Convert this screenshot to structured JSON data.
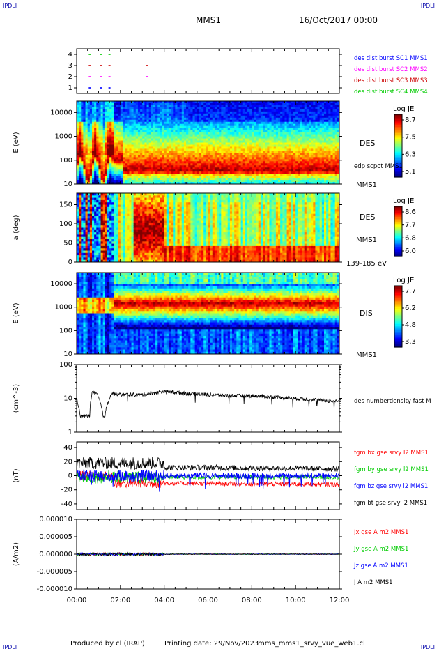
{
  "header": {
    "corner_left": "IPDLI",
    "corner_right": "IPDLI",
    "spacecraft": "MMS1",
    "date": "16/Oct/2017 00:00"
  },
  "footer": {
    "produced": "Produced by cl (IRAP)",
    "printing": "Printing date: 29/Nov/2023",
    "file": "mms_mms1_srvy_vue_web1.cl",
    "corner_left": "IPDLI",
    "corner_right": "IPDLI"
  },
  "x_axis": {
    "ticks": [
      "00:00",
      "02:00",
      "04:00",
      "06:00",
      "08:00",
      "10:00",
      "12:00"
    ]
  },
  "colors": {
    "red": "#ff0000",
    "green": "#00cc00",
    "blue": "#0000ff",
    "magenta": "#ff00ff",
    "black": "#000000"
  },
  "chart_data": [
    {
      "type": "scatter",
      "id": "burst",
      "yticks": [
        "1",
        "2",
        "3",
        "4"
      ],
      "ylim": [
        0.5,
        4.5
      ],
      "legend": [
        {
          "text": "des dist burst SC1 MMS1",
          "color": "#0000ff"
        },
        {
          "text": "des dist burst SC2 MMS2",
          "color": "#ff00ff"
        },
        {
          "text": "des dist burst SC3 MMS3",
          "color": "#cc0000"
        },
        {
          "text": "des dist burst SC4 MMS4",
          "color": "#00cc00"
        }
      ],
      "series": [
        {
          "sc": 1,
          "color": "#0000ff",
          "hours": [
            0.6,
            1.1,
            1.5
          ]
        },
        {
          "sc": 2,
          "color": "#ff00ff",
          "hours": [
            0.6,
            1.1,
            1.5,
            3.2
          ]
        },
        {
          "sc": 3,
          "color": "#cc0000",
          "hours": [
            0.6,
            1.1,
            1.5,
            3.2
          ]
        },
        {
          "sc": 4,
          "color": "#00cc00",
          "hours": [
            0.6,
            1.1,
            1.5
          ]
        }
      ]
    },
    {
      "type": "heatmap",
      "id": "des_energy",
      "ylabel": "E (eV)",
      "yticks": [
        "10",
        "100",
        "1000",
        "10000"
      ],
      "right_labels": [
        "DES",
        "edp scpot MMS1",
        "MMS1"
      ],
      "colorbar": {
        "title": "Log JE",
        "ticks": [
          "8.7",
          "7.5",
          "6.3",
          "5.1"
        ]
      }
    },
    {
      "type": "heatmap",
      "id": "des_pitch",
      "ylabel": "a (deg)",
      "yticks": [
        "0",
        "50",
        "100",
        "150"
      ],
      "right_labels": [
        "DES",
        "MMS1",
        "139-185 eV"
      ],
      "colorbar": {
        "title": "Log JE",
        "ticks": [
          "8.6",
          "7.7",
          "6.8",
          "6.0"
        ]
      }
    },
    {
      "type": "heatmap",
      "id": "dis_energy",
      "ylabel": "E (eV)",
      "yticks": [
        "10",
        "100",
        "1000",
        "10000"
      ],
      "right_labels": [
        "DIS",
        "MMS1"
      ],
      "colorbar": {
        "title": "Log JE",
        "ticks": [
          "7.7",
          "6.2",
          "4.8",
          "3.3"
        ]
      }
    },
    {
      "type": "line",
      "id": "density",
      "ylabel": "(cm^-3)",
      "yticks": [
        "1",
        "10",
        "100"
      ],
      "legend": [
        {
          "text": "des numberdensity fast M",
          "color": "#000000"
        }
      ],
      "approx_profile": [
        [
          0.0,
          10
        ],
        [
          0.15,
          3
        ],
        [
          0.6,
          3
        ],
        [
          0.7,
          15
        ],
        [
          0.9,
          14
        ],
        [
          1.2,
          3
        ],
        [
          1.3,
          3
        ],
        [
          1.6,
          14
        ],
        [
          2.0,
          13
        ],
        [
          3.0,
          13
        ],
        [
          4.0,
          16
        ],
        [
          5.0,
          14
        ],
        [
          6.0,
          13
        ],
        [
          7.0,
          12
        ],
        [
          8.0,
          12
        ],
        [
          9.0,
          11
        ],
        [
          10.0,
          10
        ],
        [
          11.0,
          9
        ],
        [
          12.0,
          8
        ]
      ]
    },
    {
      "type": "line",
      "id": "bfield",
      "ylabel": "(nT)",
      "yticks": [
        "-40",
        "-20",
        "0",
        "20",
        "40"
      ],
      "ylim": [
        -48,
        48
      ],
      "legend": [
        {
          "text": "fgm bx gse srvy l2 MMS1",
          "color": "#ff0000"
        },
        {
          "text": "fgm by gse srvy l2 MMS1",
          "color": "#00cc00"
        },
        {
          "text": "fgm bz gse srvy l2 MMS1",
          "color": "#0000ff"
        },
        {
          "text": "fgm bt gse srvy l2 MMS1",
          "color": "#000000"
        }
      ]
    },
    {
      "type": "line",
      "id": "current",
      "ylabel": "(A/m2)",
      "yticks": [
        "-0.000010",
        "-0.000005",
        "0.000000",
        "0.000005",
        "0.000010"
      ],
      "ylim": [
        -1e-05,
        1e-05
      ],
      "legend": [
        {
          "text": "Jx gse A m2 MMS1",
          "color": "#ff0000"
        },
        {
          "text": "Jy gse A m2 MMS1",
          "color": "#00cc00"
        },
        {
          "text": "Jz gse A m2 MMS1",
          "color": "#0000ff"
        },
        {
          "text": "J A m2 MMS1",
          "color": "#000000"
        }
      ]
    }
  ]
}
